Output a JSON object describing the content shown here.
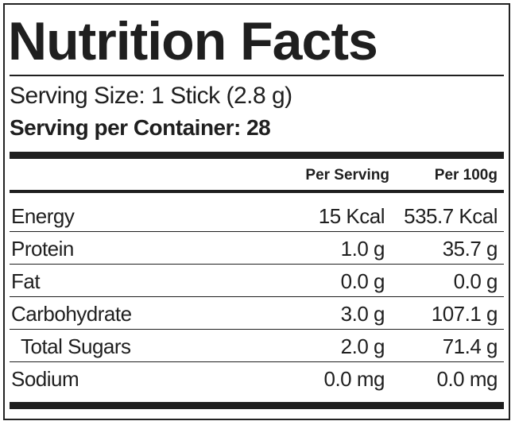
{
  "title": "Nutrition Facts",
  "serving_size": "Serving Size: 1 Stick (2.8 g)",
  "servings_per_container": "Serving per Container: 28",
  "columns": {
    "per_serving": "Per Serving",
    "per_100g": "Per 100g"
  },
  "rows": [
    {
      "name": "Energy",
      "per_serving": "15 Kcal",
      "per_100g": "535.7 Kcal"
    },
    {
      "name": "Protein",
      "per_serving": "1.0 g",
      "per_100g": "35.7 g"
    },
    {
      "name": "Fat",
      "per_serving": "0.0 g",
      "per_100g": "0.0 g"
    },
    {
      "name": "Carbohydrate",
      "per_serving": "3.0 g",
      "per_100g": "107.1 g"
    },
    {
      "name": "Total Sugars",
      "per_serving": "2.0 g",
      "per_100g": "71.4 g"
    },
    {
      "name": "Sodium",
      "per_serving": "0.0 mg",
      "per_100g": "0.0 mg"
    }
  ]
}
